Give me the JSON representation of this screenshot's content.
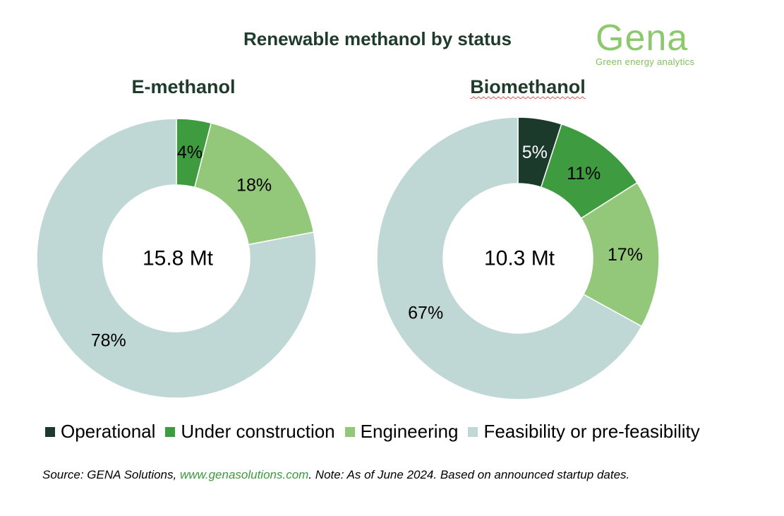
{
  "title": "Renewable methanol by status",
  "logo": {
    "word": "Gena",
    "tagline": "Green energy analytics"
  },
  "colors": {
    "Operational": "#1b3a2b",
    "Under construction": "#3e9b3f",
    "Engineering": "#93c87b",
    "Feasibility or pre-feasibility": "#bfd7d5"
  },
  "chart_data": [
    {
      "type": "pie",
      "variant": "donut",
      "title": "E-methanol",
      "center_label": "15.8 Mt",
      "categories": [
        "Under construction",
        "Engineering",
        "Feasibility or pre-feasibility"
      ],
      "values": [
        4,
        18,
        78
      ],
      "data_labels": [
        "4%",
        "18%",
        "78%"
      ]
    },
    {
      "type": "pie",
      "variant": "donut",
      "title": "Biomethanol",
      "center_label": "10.3 Mt",
      "categories": [
        "Operational",
        "Under construction",
        "Engineering",
        "Feasibility or pre-feasibility"
      ],
      "values": [
        5,
        11,
        17,
        67
      ],
      "data_labels": [
        "5%",
        "11%",
        "17%",
        "67%"
      ]
    }
  ],
  "legend": [
    "Operational",
    "Under construction",
    "Engineering",
    "Feasibility or pre-feasibility"
  ],
  "source": {
    "prefix": "Source: GENA Solutions, ",
    "link": "www.genasolutions.com",
    "suffix": ". Note: As of June 2024. Based on announced startup dates."
  }
}
